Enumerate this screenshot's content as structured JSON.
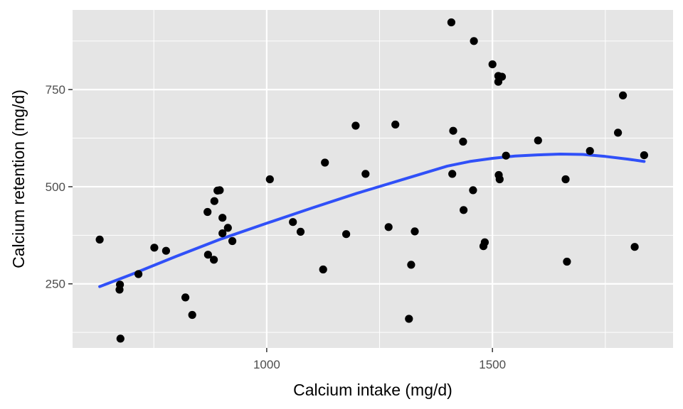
{
  "chart_data": {
    "type": "scatter",
    "xlabel": "Calcium intake (mg/d)",
    "ylabel": "Calcium retention (mg/d)",
    "xlim": [
      570,
      1900
    ],
    "ylim": [
      85,
      955
    ],
    "x_ticks": [
      1000,
      1500
    ],
    "x_minor_ticks": [
      750,
      1250,
      1750
    ],
    "y_ticks": [
      250,
      500,
      750
    ],
    "y_minor_ticks": [
      125,
      375,
      625,
      875
    ],
    "x_tick_labels": [
      "1000",
      "1500"
    ],
    "y_tick_labels": [
      "250",
      "500",
      "750"
    ],
    "grid": true,
    "colors": {
      "panel_background": "#e5e5e5",
      "grid": "#ffffff",
      "points": "#000000",
      "smooth_line": "#3050f8",
      "tick_text": "#4d4d4d",
      "axis_title": "#000000"
    },
    "points": [
      [
        630,
        364
      ],
      [
        675,
        248
      ],
      [
        674,
        235
      ],
      [
        676,
        109
      ],
      [
        716,
        275
      ],
      [
        751,
        343
      ],
      [
        777,
        335
      ],
      [
        820,
        215
      ],
      [
        835,
        170
      ],
      [
        869,
        435
      ],
      [
        870,
        325
      ],
      [
        883,
        312
      ],
      [
        884,
        463
      ],
      [
        891,
        490
      ],
      [
        896,
        491
      ],
      [
        902,
        420
      ],
      [
        902,
        380
      ],
      [
        914,
        394
      ],
      [
        924,
        360
      ],
      [
        1007,
        519
      ],
      [
        1058,
        409
      ],
      [
        1075,
        384
      ],
      [
        1125,
        287
      ],
      [
        1129,
        562
      ],
      [
        1176,
        378
      ],
      [
        1197,
        657
      ],
      [
        1219,
        533
      ],
      [
        1270,
        396
      ],
      [
        1285,
        660
      ],
      [
        1315,
        160
      ],
      [
        1320,
        299
      ],
      [
        1328,
        385
      ],
      [
        1409,
        923
      ],
      [
        1411,
        533
      ],
      [
        1413,
        644
      ],
      [
        1435,
        616
      ],
      [
        1436,
        440
      ],
      [
        1457,
        491
      ],
      [
        1459,
        875
      ],
      [
        1480,
        347
      ],
      [
        1483,
        357
      ],
      [
        1500,
        815
      ],
      [
        1513,
        785
      ],
      [
        1513,
        770
      ],
      [
        1514,
        530
      ],
      [
        1516,
        519
      ],
      [
        1521,
        783
      ],
      [
        1530,
        580
      ],
      [
        1601,
        619
      ],
      [
        1662,
        519
      ],
      [
        1665,
        307
      ],
      [
        1716,
        592
      ],
      [
        1778,
        639
      ],
      [
        1789,
        735
      ],
      [
        1815,
        345
      ],
      [
        1836,
        581
      ]
    ],
    "smooth_line": {
      "x": [
        630,
        700,
        800,
        900,
        1000,
        1100,
        1200,
        1300,
        1400,
        1450,
        1500,
        1550,
        1600,
        1650,
        1700,
        1750,
        1800,
        1836
      ],
      "y": [
        243,
        274,
        321,
        366,
        406,
        445,
        483,
        518,
        553,
        565,
        573,
        579,
        582,
        584,
        583,
        578,
        571,
        565
      ]
    }
  }
}
